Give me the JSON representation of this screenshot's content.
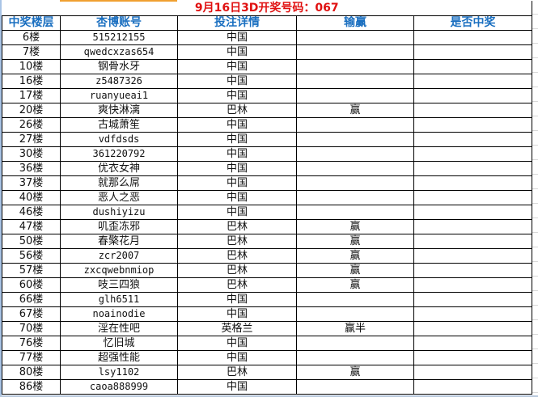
{
  "title": "9月16日3D开奖号码：067",
  "colors": {
    "title": "#e01010",
    "header": "#1a6fc0",
    "border": "#000000"
  },
  "headers": [
    "中奖楼层",
    "杏博账号",
    "投注详情",
    "输赢",
    "是否中奖"
  ],
  "rows": [
    {
      "floor": "6楼",
      "account": "515212155",
      "bet": "中国",
      "result": "",
      "won": ""
    },
    {
      "floor": "7楼",
      "account": "qwedcxzas654",
      "bet": "中国",
      "result": "",
      "won": ""
    },
    {
      "floor": "10楼",
      "account": "钢骨水牙",
      "bet": "中国",
      "result": "",
      "won": ""
    },
    {
      "floor": "16楼",
      "account": "z5487326",
      "bet": "中国",
      "result": "",
      "won": ""
    },
    {
      "floor": "17楼",
      "account": "ruanyueai1",
      "bet": "中国",
      "result": "",
      "won": ""
    },
    {
      "floor": "20楼",
      "account": "爽快淋漓",
      "bet": "巴林",
      "result": "赢",
      "won": ""
    },
    {
      "floor": "26楼",
      "account": "古城萧笙",
      "bet": "中国",
      "result": "",
      "won": ""
    },
    {
      "floor": "27楼",
      "account": "vdfdsds",
      "bet": "中国",
      "result": "",
      "won": ""
    },
    {
      "floor": "30楼",
      "account": "361220792",
      "bet": "中国",
      "result": "",
      "won": ""
    },
    {
      "floor": "36楼",
      "account": "优衣女神",
      "bet": "中国",
      "result": "",
      "won": ""
    },
    {
      "floor": "37楼",
      "account": "就那么屌",
      "bet": "中国",
      "result": "",
      "won": ""
    },
    {
      "floor": "40楼",
      "account": "恶人之恶",
      "bet": "中国",
      "result": "",
      "won": ""
    },
    {
      "floor": "46楼",
      "account": "dushiyizu",
      "bet": "中国",
      "result": "",
      "won": ""
    },
    {
      "floor": "47楼",
      "account": "叽歪冻邪",
      "bet": "巴林",
      "result": "赢",
      "won": ""
    },
    {
      "floor": "50楼",
      "account": "春檠花月",
      "bet": "巴林",
      "result": "赢",
      "won": ""
    },
    {
      "floor": "56楼",
      "account": "zcr2007",
      "bet": "巴林",
      "result": "赢",
      "won": ""
    },
    {
      "floor": "57楼",
      "account": "zxcqwebnmiop",
      "bet": "巴林",
      "result": "赢",
      "won": ""
    },
    {
      "floor": "60楼",
      "account": "吱三四狼",
      "bet": "巴林",
      "result": "赢",
      "won": ""
    },
    {
      "floor": "66楼",
      "account": "glh6511",
      "bet": "中国",
      "result": "",
      "won": ""
    },
    {
      "floor": "67楼",
      "account": "noainodie",
      "bet": "中国",
      "result": "",
      "won": ""
    },
    {
      "floor": "70楼",
      "account": "淫在性吧",
      "bet": "英格兰",
      "result": "赢半",
      "won": ""
    },
    {
      "floor": "76楼",
      "account": "忆旧城",
      "bet": "中国",
      "result": "",
      "won": ""
    },
    {
      "floor": "77楼",
      "account": "超强性能",
      "bet": "中国",
      "result": "",
      "won": ""
    },
    {
      "floor": "80楼",
      "account": "lsy1102",
      "bet": "巴林",
      "result": "赢",
      "won": ""
    },
    {
      "floor": "86楼",
      "account": "caoa888999",
      "bet": "中国",
      "result": "",
      "won": ""
    }
  ]
}
